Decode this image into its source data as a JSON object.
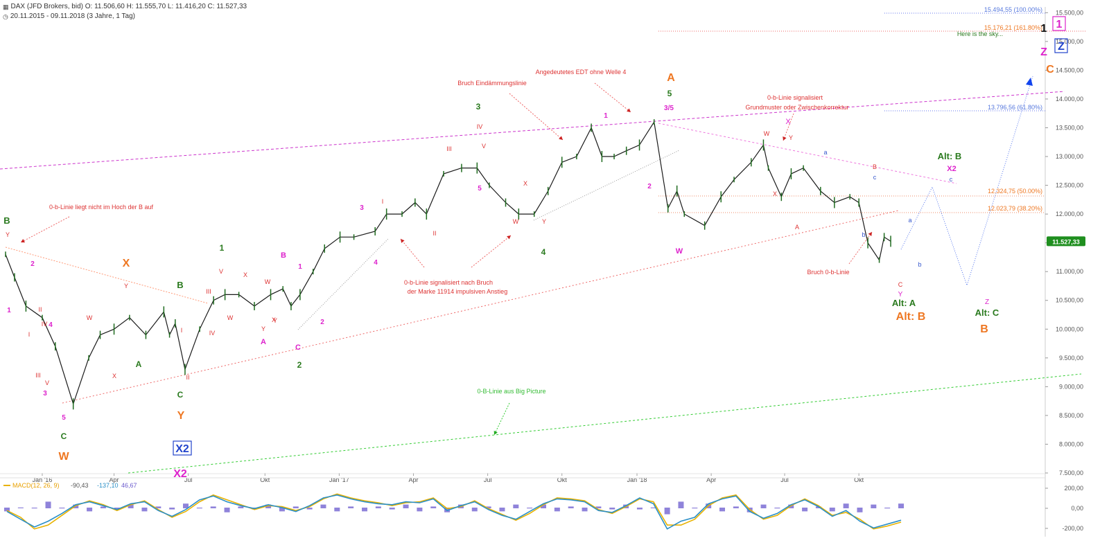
{
  "header": {
    "instrument_icon": "chart-logo-icon",
    "title_line": "DAX (JFD Brokers, bid)  O: 11.506,60  H: 11.555,70  L: 11.416,20  C: 11.527,33",
    "period_icon": "clock-icon",
    "period_line": "20.11.2015 - 09.11.2018  (3 Jahre, 1 Tag)"
  },
  "chart_data": {
    "type": "line",
    "title": "DAX (JFD Brokers, bid)",
    "interval": "1 Tag",
    "x_range": [
      "2015-11-20",
      "2018-11-09"
    ],
    "ohlc_last": {
      "open": 11506.6,
      "high": 11555.7,
      "low": 11416.2,
      "close": 11527.33
    },
    "x_ticks": [
      "Jan '16",
      "Apr",
      "Jul",
      "Okt",
      "Jan '17",
      "Apr",
      "Jul",
      "Okt",
      "Jan '18",
      "Apr",
      "Jul",
      "Okt"
    ],
    "y_ticks": [
      "15.500,00",
      "15.000,00",
      "14.500,00",
      "14.000,00",
      "13.500,00",
      "13.000,00",
      "12.500,00",
      "12.000,00",
      "11.500,00",
      "11.000,00",
      "10.500,00",
      "10.000,00",
      "9.500,00",
      "9.000,00",
      "8.500,00",
      "8.000,00",
      "7.500,00"
    ],
    "ylim": [
      7500,
      15600
    ],
    "grid": false,
    "series": [
      {
        "name": "DAX",
        "color": "#1a1a1a",
        "x": [
          "2015-11-20",
          "2015-12-01",
          "2015-12-15",
          "2016-01-04",
          "2016-01-20",
          "2016-02-11",
          "2016-03-01",
          "2016-03-15",
          "2016-04-01",
          "2016-04-20",
          "2016-05-10",
          "2016-06-01",
          "2016-06-08",
          "2016-06-15",
          "2016-06-27",
          "2016-07-15",
          "2016-08-01",
          "2016-08-15",
          "2016-09-01",
          "2016-09-20",
          "2016-10-10",
          "2016-10-25",
          "2016-11-04",
          "2016-11-15",
          "2016-12-01",
          "2016-12-15",
          "2017-01-03",
          "2017-01-20",
          "2017-02-15",
          "2017-03-01",
          "2017-03-20",
          "2017-04-05",
          "2017-04-19",
          "2017-05-10",
          "2017-06-01",
          "2017-06-20",
          "2017-07-05",
          "2017-07-25",
          "2017-08-10",
          "2017-08-29",
          "2017-09-15",
          "2017-10-02",
          "2017-10-20",
          "2017-11-07",
          "2017-11-20",
          "2017-12-05",
          "2017-12-20",
          "2018-01-05",
          "2018-01-23",
          "2018-02-09",
          "2018-02-20",
          "2018-03-01",
          "2018-03-26",
          "2018-04-15",
          "2018-05-01",
          "2018-05-22",
          "2018-06-06",
          "2018-06-12",
          "2018-06-28",
          "2018-07-10",
          "2018-07-25",
          "2018-08-15",
          "2018-09-01",
          "2018-09-20",
          "2018-10-01",
          "2018-10-12",
          "2018-10-26",
          "2018-11-01",
          "2018-11-09"
        ],
        "y": [
          11300,
          10900,
          10400,
          10200,
          9700,
          8700,
          9500,
          9900,
          10000,
          10200,
          9900,
          10300,
          9900,
          10100,
          9300,
          10000,
          10500,
          10600,
          10600,
          10400,
          10600,
          10700,
          10400,
          10600,
          11000,
          11400,
          11600,
          11600,
          11700,
          12000,
          12000,
          12200,
          12000,
          12700,
          12800,
          12800,
          12500,
          12200,
          12000,
          12000,
          12400,
          12900,
          13000,
          13500,
          13000,
          13000,
          13100,
          13200,
          13600,
          12100,
          12400,
          12000,
          11800,
          12300,
          12600,
          12900,
          13200,
          12800,
          12300,
          12700,
          12800,
          12400,
          12200,
          12300,
          12200,
          11500,
          11200,
          11600,
          11527
        ]
      },
      {
        "name": "MACD(12, 26, 9)",
        "color": "#2a8fc7",
        "values": [
          -40,
          -120,
          -200,
          -140,
          -60,
          30,
          60,
          20,
          -20,
          40,
          60,
          -30,
          -90,
          -20,
          80,
          120,
          60,
          20,
          -10,
          30,
          0,
          -40,
          20,
          100,
          130,
          90,
          60,
          40,
          30,
          60,
          50,
          90,
          -30,
          20,
          60,
          -20,
          -80,
          -120,
          -40,
          40,
          90,
          80,
          60,
          -30,
          -50,
          20,
          100,
          40,
          -220,
          -140,
          -100,
          40,
          90,
          120,
          -40,
          -110,
          -60,
          30,
          80,
          10,
          -90,
          -30,
          -140,
          -210,
          -170,
          -130
        ]
      },
      {
        "name": "-137,10",
        "color": "#e8b200",
        "values": [
          -30,
          -100,
          -220,
          -180,
          -80,
          20,
          70,
          30,
          -30,
          30,
          70,
          -20,
          -100,
          -40,
          60,
          130,
          80,
          30,
          -20,
          20,
          10,
          -30,
          10,
          90,
          140,
          100,
          70,
          50,
          20,
          50,
          60,
          100,
          -10,
          10,
          70,
          -10,
          -70,
          -130,
          -60,
          30,
          100,
          90,
          70,
          -20,
          -60,
          10,
          90,
          60,
          -180,
          -180,
          -120,
          20,
          100,
          130,
          -20,
          -120,
          -80,
          20,
          90,
          20,
          -80,
          -50,
          -120,
          -220,
          -190,
          -150
        ]
      }
    ],
    "macd_label": "MACD(12, 26, 9)",
    "macd_values": [
      "-90,43",
      "-137,10",
      "46,67"
    ],
    "macd_y_ticks": [
      "200,00",
      "0,00",
      "-200,00"
    ],
    "price_tag": "11.527,33",
    "fib_levels": [
      {
        "label": "15.494,55 (100.00%)",
        "y": 15494.55,
        "color": "#5577dd"
      },
      {
        "label": "15.176,21 (161.80%)",
        "y": 15176.21,
        "color": "#ee7722"
      },
      {
        "label": "13.796,56 (61.80%)",
        "y": 13796.56,
        "color": "#5577dd"
      },
      {
        "label": "12.324,75 (50.00%)",
        "y": 12324.75,
        "color": "#ee7722"
      },
      {
        "label": "12.023,79 (38.20%)",
        "y": 12023.79,
        "color": "#ee7722"
      }
    ],
    "annotations": [
      "0-b-Linie liegt nicht im Hoch der B auf",
      "Bruch Eindämmungslinie",
      "Angedeutetes EDT ohne Welle 4",
      "0-b-Linie signalisiert",
      "Grundmuster oder Zwischenkorrektur",
      "0-b-Linie signalisiert nach Bruch",
      "der Marke 11914 impulsiven Anstieg",
      "Bruch 0-b-Linie",
      "0-B-Linie aus Big Picture",
      "Here is the sky..."
    ],
    "wave_labels": [
      {
        "t": "B",
        "c": "#2a7a1e",
        "s": 13,
        "b": 1
      },
      {
        "t": "Y",
        "c": "#dd3333",
        "s": 9
      },
      {
        "t": "2",
        "c": "#dd22cc",
        "s": 10,
        "b": 1
      },
      {
        "t": "1",
        "c": "#dd22cc",
        "s": 10,
        "b": 1
      },
      {
        "t": "II",
        "c": "#dd3333",
        "s": 9
      },
      {
        "t": "I",
        "c": "#dd3333",
        "s": 9
      },
      {
        "t": "IV",
        "c": "#dd3333",
        "s": 9
      },
      {
        "t": "4",
        "c": "#dd22cc",
        "s": 10,
        "b": 1
      },
      {
        "t": "III",
        "c": "#dd3333",
        "s": 9
      },
      {
        "t": "V",
        "c": "#dd3333",
        "s": 9
      },
      {
        "t": "3",
        "c": "#dd22cc",
        "s": 10,
        "b": 1
      },
      {
        "t": "5",
        "c": "#dd22cc",
        "s": 10,
        "b": 1
      },
      {
        "t": "C",
        "c": "#2a7a1e",
        "s": 12,
        "b": 1
      },
      {
        "t": "W",
        "c": "#ee7722",
        "s": 16,
        "b": 1
      },
      {
        "t": "W",
        "c": "#dd3333",
        "s": 9
      },
      {
        "t": "X",
        "c": "#dd3333",
        "s": 9
      },
      {
        "t": "A",
        "c": "#2a7a1e",
        "s": 12,
        "b": 1
      },
      {
        "t": "X",
        "c": "#ee7722",
        "s": 16,
        "b": 1
      },
      {
        "t": "Y",
        "c": "#dd3333",
        "s": 9
      },
      {
        "t": "B",
        "c": "#2a7a1e",
        "s": 13,
        "b": 1
      },
      {
        "t": "C",
        "c": "#2a7a1e",
        "s": 12,
        "b": 1
      },
      {
        "t": "Y",
        "c": "#ee7722",
        "s": 16,
        "b": 1
      },
      {
        "t": "X2",
        "c": "#dd22cc",
        "s": 16,
        "b": 1
      },
      {
        "t": "I",
        "c": "#dd3333",
        "s": 9
      },
      {
        "t": "II",
        "c": "#dd3333",
        "s": 9
      },
      {
        "t": "III",
        "c": "#dd3333",
        "s": 9
      },
      {
        "t": "IV",
        "c": "#dd3333",
        "s": 9
      },
      {
        "t": "V",
        "c": "#dd3333",
        "s": 9
      },
      {
        "t": "1",
        "c": "#2a7a1e",
        "s": 12,
        "b": 1
      },
      {
        "t": "W",
        "c": "#dd3333",
        "s": 9
      },
      {
        "t": "X",
        "c": "#dd3333",
        "s": 9
      },
      {
        "t": "W",
        "c": "#dd3333",
        "s": 9
      },
      {
        "t": "Y",
        "c": "#dd3333",
        "s": 9
      },
      {
        "t": "Y",
        "c": "#dd3333",
        "s": 9
      },
      {
        "t": "B",
        "c": "#dd22cc",
        "s": 11,
        "b": 1
      },
      {
        "t": "X",
        "c": "#dd3333",
        "s": 9
      },
      {
        "t": "A",
        "c": "#dd22cc",
        "s": 11,
        "b": 1
      },
      {
        "t": "1",
        "c": "#dd22cc",
        "s": 10,
        "b": 1
      },
      {
        "t": "C",
        "c": "#dd22cc",
        "s": 11,
        "b": 1
      },
      {
        "t": "2",
        "c": "#2a7a1e",
        "s": 12,
        "b": 1
      },
      {
        "t": "2",
        "c": "#dd22cc",
        "s": 10,
        "b": 1
      },
      {
        "t": "3",
        "c": "#dd22cc",
        "s": 10,
        "b": 1
      },
      {
        "t": "I",
        "c": "#dd3333",
        "s": 9
      },
      {
        "t": "4",
        "c": "#dd22cc",
        "s": 10,
        "b": 1
      },
      {
        "t": "II",
        "c": "#dd3333",
        "s": 9
      },
      {
        "t": "III",
        "c": "#dd3333",
        "s": 9
      },
      {
        "t": "V",
        "c": "#dd3333",
        "s": 9
      },
      {
        "t": "IV",
        "c": "#dd3333",
        "s": 9
      },
      {
        "t": "5",
        "c": "#dd22cc",
        "s": 10,
        "b": 1
      },
      {
        "t": "3",
        "c": "#2a7a1e",
        "s": 12,
        "b": 1
      },
      {
        "t": "X",
        "c": "#dd3333",
        "s": 9
      },
      {
        "t": "W",
        "c": "#dd3333",
        "s": 9
      },
      {
        "t": "Y",
        "c": "#dd3333",
        "s": 9
      },
      {
        "t": "4",
        "c": "#2a7a1e",
        "s": 12,
        "b": 1
      },
      {
        "t": "1",
        "c": "#dd22cc",
        "s": 10,
        "b": 1
      },
      {
        "t": "2",
        "c": "#dd22cc",
        "s": 10,
        "b": 1
      },
      {
        "t": "A",
        "c": "#ee7722",
        "s": 16,
        "b": 1
      },
      {
        "t": "5",
        "c": "#2a7a1e",
        "s": 12,
        "b": 1
      },
      {
        "t": "3/5",
        "c": "#dd22cc",
        "s": 10,
        "b": 1
      },
      {
        "t": "W",
        "c": "#dd22cc",
        "s": 11,
        "b": 1
      },
      {
        "t": "W",
        "c": "#dd3333",
        "s": 9
      },
      {
        "t": "X",
        "c": "#dd3333",
        "s": 9
      },
      {
        "t": "X",
        "c": "#dd22cc",
        "s": 11
      },
      {
        "t": "Y",
        "c": "#dd3333",
        "s": 9
      },
      {
        "t": "A",
        "c": "#dd3333",
        "s": 9
      },
      {
        "t": "a",
        "c": "#3355cc",
        "s": 9
      },
      {
        "t": "B",
        "c": "#dd3333",
        "s": 9
      },
      {
        "t": "c",
        "c": "#3355cc",
        "s": 9
      },
      {
        "t": "b",
        "c": "#3355cc",
        "s": 9
      },
      {
        "t": "a",
        "c": "#3355cc",
        "s": 9
      },
      {
        "t": "b",
        "c": "#3355cc",
        "s": 9
      },
      {
        "t": "C",
        "c": "#dd3333",
        "s": 9
      },
      {
        "t": "Y",
        "c": "#dd22cc",
        "s": 10
      },
      {
        "t": "Alt: A",
        "c": "#2a7a1e",
        "s": 13,
        "b": 1
      },
      {
        "t": "Alt: B",
        "c": "#ee7722",
        "s": 16,
        "b": 1
      },
      {
        "t": "Alt: B",
        "c": "#2a7a1e",
        "s": 13,
        "b": 1
      },
      {
        "t": "X2",
        "c": "#dd22cc",
        "s": 11,
        "b": 1
      },
      {
        "t": "c",
        "c": "#3355cc",
        "s": 9
      },
      {
        "t": "Z",
        "c": "#dd22cc",
        "s": 10
      },
      {
        "t": "Alt: C",
        "c": "#2a7a1e",
        "s": 13,
        "b": 1
      },
      {
        "t": "B",
        "c": "#ee7722",
        "s": 16,
        "b": 1
      },
      {
        "t": "C",
        "c": "#ee7722",
        "s": 16,
        "b": 1
      },
      {
        "t": "Z",
        "c": "#dd22cc",
        "s": 16,
        "b": 1
      },
      {
        "t": "1",
        "c": "#111111",
        "s": 16,
        "b": 1
      }
    ],
    "boxed_labels": [
      {
        "t": "X2",
        "c": "#2244cc",
        "s": 16,
        "b": 1
      },
      {
        "t": "Z",
        "c": "#2244cc",
        "s": 16,
        "b": 1
      },
      {
        "t": "1",
        "c": "#dd22cc",
        "s": 16,
        "b": 1
      }
    ]
  }
}
